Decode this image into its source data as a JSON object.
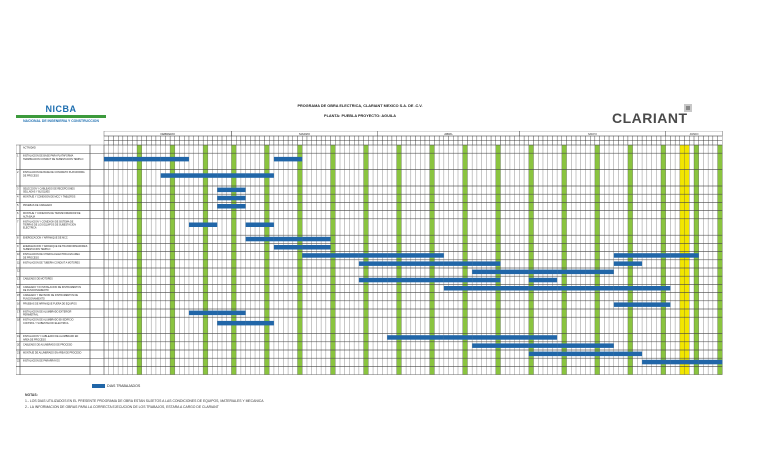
{
  "header": {
    "left_logo": {
      "name": "NICBA",
      "subtitle": "NACIONAL DE INGENIERIA Y CONSTRUCCION"
    },
    "title": "PROGRAMA DE OBRA ELECTRICA, CLARIANT MEXICO S.A. DE .C.V.",
    "subtitle": "PLANTA: PUEBLA PROYECTO: AGUILA",
    "right_logo": "CLARIANT"
  },
  "gantt": {
    "months": [
      {
        "label": "FEBRERO",
        "start": 0,
        "span": 27
      },
      {
        "label": "MARZO",
        "start": 27,
        "span": 31
      },
      {
        "label": "ABRIL",
        "start": 58,
        "span": 30
      },
      {
        "label": "MAYO",
        "start": 88,
        "span": 31
      },
      {
        "label": "JUNIO",
        "start": 119,
        "span": 12
      }
    ],
    "day_count": 131,
    "milestone_columns": [
      27,
      28,
      29,
      30,
      31,
      32,
      33,
      34,
      35,
      36,
      37,
      38,
      39,
      40,
      41,
      42,
      43,
      44,
      45,
      46,
      47,
      48,
      49,
      50,
      51,
      52,
      53,
      54,
      55,
      56,
      57,
      58,
      59,
      60,
      61,
      62,
      63,
      64,
      65,
      66,
      67,
      68,
      69,
      70,
      71,
      72,
      73,
      74,
      75,
      76,
      77,
      78,
      79,
      80,
      81,
      82,
      83,
      84,
      85,
      86,
      87,
      88,
      89,
      90,
      91,
      92,
      93,
      94,
      95,
      96,
      97,
      98,
      99,
      100,
      101,
      102,
      103,
      104,
      105,
      106,
      107,
      108,
      109,
      110,
      111,
      112,
      113,
      114,
      115,
      116,
      117,
      118,
      119,
      120,
      121,
      122,
      123,
      124,
      125,
      126,
      127,
      128,
      129,
      130
    ],
    "weekend_columns": [
      7,
      14,
      21,
      27,
      34,
      41,
      48,
      55,
      62,
      69,
      76,
      83,
      90,
      97,
      104,
      111,
      118,
      125,
      130
    ],
    "today_columns": [
      122,
      123
    ],
    "colors": {
      "bar": "#2166a8",
      "weekend": "#8ac43f",
      "today": "#f2e600",
      "grid": "#444444"
    },
    "rows": [
      {
        "no": "",
        "label": "ACTIVIDAD",
        "h": 1,
        "bars": []
      },
      {
        "no": "1",
        "label": "INSTALACION DE BASE PARA PLATAFORMA TERMINACION CONDUIT DE SUBESTACION TEMPLO",
        "h": 2,
        "bars": [
          [
            0,
            5
          ],
          [
            6,
            11
          ],
          [
            12,
            17
          ],
          [
            36,
            41
          ]
        ]
      },
      {
        "no": "2",
        "label": "INSTALACION DE BASE DE CONCRETO PLATAFORMA DE PROCESO",
        "h": 2,
        "bars": [
          [
            12,
            17
          ],
          [
            18,
            23
          ],
          [
            24,
            29
          ],
          [
            30,
            35
          ]
        ]
      },
      {
        "no": "3",
        "label": "SELECCION Y CABLEADO DE RECEPCIONES SELLADAS Y BLOQUES",
        "h": 1,
        "bars": [
          [
            24,
            29
          ]
        ]
      },
      {
        "no": "4",
        "label": "MONTAJE Y CONEXION DE MCC Y TABLEROS",
        "h": 1,
        "bars": [
          [
            24,
            29
          ]
        ]
      },
      {
        "no": "5",
        "label": "PRUEBAS DE CABLEADO",
        "h": 1,
        "bars": [
          [
            24,
            29
          ]
        ]
      },
      {
        "no": "6",
        "label": "MONTAJE Y CONEXION DE TRANSFORMADOR DE ALTA BAJA",
        "h": 1,
        "bars": []
      },
      {
        "no": "7",
        "label": "INSTALACION Y CONEXION DE SISTEMA DE TIERRAS DE LOS EQUIPOS DE SUBESTACION ELECTRICA",
        "h": 2,
        "bars": [
          [
            18,
            23
          ],
          [
            30,
            35
          ]
        ]
      },
      {
        "no": "8",
        "label": "ENERGIZACION Y ARRANQUE DE MCC",
        "h": 1,
        "bars": [
          [
            30,
            35
          ],
          [
            36,
            41
          ],
          [
            42,
            47
          ]
        ]
      },
      {
        "no": "9",
        "label": "ENERGIZACION Y ARRANQUE DE TRANSFORMADORES SUBESTACION TEMPLO",
        "h": 1,
        "bars": [
          [
            36,
            41
          ],
          [
            42,
            47
          ]
        ]
      },
      {
        "no": "10",
        "label": "INSTALACION DE CHAROLA ELECTRICA EN AREA DE PROCESO",
        "h": 1,
        "bars": [
          [
            42,
            47
          ],
          [
            48,
            53
          ],
          [
            54,
            59
          ],
          [
            60,
            65
          ],
          [
            66,
            71
          ],
          [
            108,
            113
          ],
          [
            114,
            119
          ],
          [
            120,
            125
          ]
        ]
      },
      {
        "no": "11",
        "label": "INSTALACION DE TUBERIA CONDUIT A MOTORES",
        "h": 1,
        "bars": [
          [
            54,
            59
          ],
          [
            60,
            65
          ],
          [
            66,
            71
          ],
          [
            72,
            77
          ],
          [
            78,
            83
          ],
          [
            108,
            113
          ]
        ]
      },
      {
        "no": "12",
        "label": "",
        "h": 1,
        "bars": [
          [
            78,
            83
          ],
          [
            84,
            89
          ],
          [
            90,
            95
          ],
          [
            96,
            101
          ],
          [
            102,
            107
          ]
        ]
      },
      {
        "no": "13",
        "label": "CABLEADO DE MOTORES",
        "h": 1,
        "bars": [
          [
            54,
            59
          ],
          [
            60,
            65
          ],
          [
            66,
            71
          ],
          [
            72,
            77
          ],
          [
            78,
            83
          ],
          [
            90,
            95
          ]
        ]
      },
      {
        "no": "14",
        "label": "CABLEADO Y/O INSTALACION DE INSTRUMENTOS DE FUNCIONAMIENTO",
        "h": 1,
        "bars": [
          [
            72,
            77
          ],
          [
            78,
            83
          ],
          [
            84,
            89
          ],
          [
            90,
            95
          ],
          [
            96,
            101
          ],
          [
            102,
            107
          ],
          [
            108,
            113
          ],
          [
            114,
            119
          ]
        ]
      },
      {
        "no": "15",
        "label": "CABLEADO Y REVISION DE INSTRUMENTOS DE FUNCIONAMIENTO",
        "h": 1,
        "bars": []
      },
      {
        "no": "16",
        "label": "PRUEBAS DE ARRANQUE FUERA DE EQUIPOS",
        "h": 1,
        "bars": [
          [
            108,
            113
          ],
          [
            114,
            119
          ]
        ]
      },
      {
        "no": "17",
        "label": "INSTALACION DE ALUMBRADO EXTERIOR PERIMETRAL",
        "h": 1,
        "bars": [
          [
            18,
            23
          ],
          [
            24,
            29
          ]
        ]
      },
      {
        "no": "18",
        "label": "INSTALACION DE ALUMBRADO EN EDIFICIO CONTROL Y SUBESTACION ELECTRICA",
        "h": 2,
        "bars": [
          [
            24,
            29
          ],
          [
            30,
            35
          ]
        ]
      },
      {
        "no": "19",
        "label": "INSTALACION Y CABLEADO DE ALUMBRADO EN AREA DE PROCESO",
        "h": 1,
        "bars": [
          [
            60,
            65
          ],
          [
            66,
            71
          ],
          [
            72,
            77
          ],
          [
            78,
            83
          ],
          [
            84,
            89
          ],
          [
            90,
            95
          ]
        ]
      },
      {
        "no": "20",
        "label": "CABLEADO DE ALUMBRADO DE PROCESO",
        "h": 1,
        "bars": [
          [
            78,
            83
          ],
          [
            84,
            89
          ],
          [
            90,
            95
          ],
          [
            96,
            101
          ],
          [
            102,
            107
          ]
        ]
      },
      {
        "no": "21",
        "label": "MONTAJE DE ALUMBRADO EN AREA DE PROCESO",
        "h": 1,
        "bars": [
          [
            90,
            95
          ],
          [
            96,
            101
          ],
          [
            102,
            107
          ],
          [
            108,
            113
          ]
        ]
      },
      {
        "no": "22",
        "label": "INSTALACION DE PARARRAYOS",
        "h": 1,
        "bars": [
          [
            114,
            119
          ],
          [
            120,
            125
          ],
          [
            126,
            130
          ]
        ]
      },
      {
        "no": "",
        "label": "",
        "h": 1,
        "bars": []
      }
    ]
  },
  "legend": "DIAS TRABAJADOS",
  "notes": {
    "title": "NOTAS:",
    "lines": [
      "1.- LOS DIAS UTILIZADOS EN EL PRESENTE PROGRAMA DE OBRA ESTAN SUJETOS A LAS CONDICIONES DE EQUIPOS, MATERIALES Y MECANICA",
      "2.- LA INFORMACION DE OBRAS PARA LA CORRECTA EJECUCION DE LOS TRABAJOS, ESTARA A CARGO DE CLARIANT"
    ]
  }
}
